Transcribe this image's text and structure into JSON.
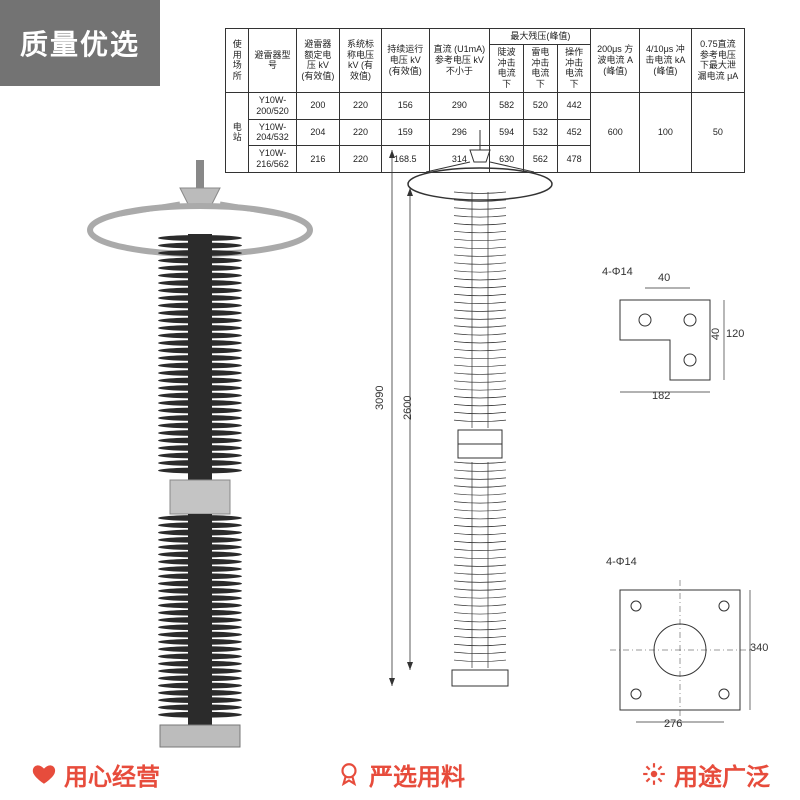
{
  "badge_tl": "质量优选",
  "table": {
    "header_row1": [
      "使用场所",
      "避雷器型号",
      "避雷器额定电压 kV (有效值)",
      "系统标称电压 kV (有效值)",
      "持续运行电压 kV (有效值)",
      "直流 (U1mA) 参考电压 kV 不小于",
      "最大残压(峰值)",
      "200μs 方波电流 A (峰值)",
      "4/10μs 冲击电流 kA (峰值)",
      "0.75直流参考电压下最大泄漏电流 μA"
    ],
    "sub_cols": [
      "陡波冲击电流下",
      "雷电冲击电流下",
      "操作冲击电流下"
    ],
    "group_label": "电站",
    "rows": [
      {
        "model": "Y10W-200/520",
        "rated": "200",
        "sys": "220",
        "cont": "156",
        "dc": "290",
        "r1": "582",
        "r2": "520",
        "r3": "442"
      },
      {
        "model": "Y10W-204/532",
        "rated": "204",
        "sys": "220",
        "cont": "159",
        "dc": "296",
        "r1": "594",
        "r2": "532",
        "r3": "452"
      },
      {
        "model": "Y10W-216/562",
        "rated": "216",
        "sys": "220",
        "cont": "168.5",
        "dc": "314",
        "r1": "630",
        "r2": "562",
        "r3": "478"
      }
    ],
    "shared": {
      "sq200": "600",
      "imp": "100",
      "leak": "50"
    }
  },
  "diagram": {
    "overall_height": "3090",
    "body_height": "2600",
    "bracket_note": "4-Φ14",
    "bracket_w": "182",
    "bracket_h": "120",
    "bracket_p1": "40",
    "bracket_p2": "40",
    "base_note": "4-Φ14",
    "base_outer": "340",
    "base_inner": "276"
  },
  "footer": {
    "left": "用心经营",
    "mid": "严选用料",
    "right": "用途广泛"
  },
  "colors": {
    "accent": "#e74c3c",
    "line": "#333333",
    "arrester_body": "#2b2b2b",
    "metal": "#c0c0c0",
    "overlay": "rgba(0,0,0,0.55)"
  }
}
